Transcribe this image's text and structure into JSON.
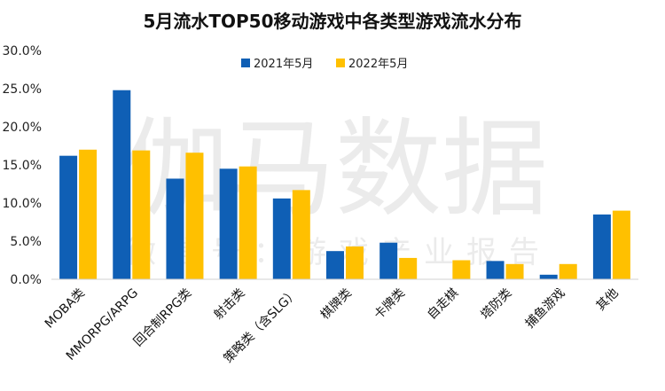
{
  "chart_data": {
    "type": "bar",
    "title": "5月流水TOP50移动游戏中各类型游戏流水分布",
    "categories": [
      "MOBA类",
      "MMORPG/ARPG",
      "回合制RPG类",
      "射击类",
      "策略类（含SLG）",
      "棋牌类",
      "卡牌类",
      "自走棋",
      "塔防类",
      "捕鱼游戏",
      "其他"
    ],
    "series": [
      {
        "name": "2021年5月",
        "color": "#0F5FB5",
        "values": [
          16.2,
          24.8,
          13.2,
          14.5,
          10.6,
          3.7,
          4.8,
          0,
          2.4,
          0.6,
          8.5
        ]
      },
      {
        "name": "2022年5月",
        "color": "#FFC000",
        "values": [
          17.0,
          16.9,
          16.6,
          14.8,
          11.7,
          4.3,
          2.8,
          2.5,
          2.0,
          2.0,
          9.0
        ]
      }
    ],
    "ylim": [
      0,
      30
    ],
    "yticks": [
      "0.0%",
      "5.0%",
      "10.0%",
      "15.0%",
      "20.0%",
      "25.0%",
      "30.0%"
    ],
    "xlabel": "",
    "ylabel": "",
    "legend_position": "top-center",
    "grid": false
  },
  "watermark": {
    "main": "伽马数据",
    "sub": "微信号：游戏产业报告"
  }
}
